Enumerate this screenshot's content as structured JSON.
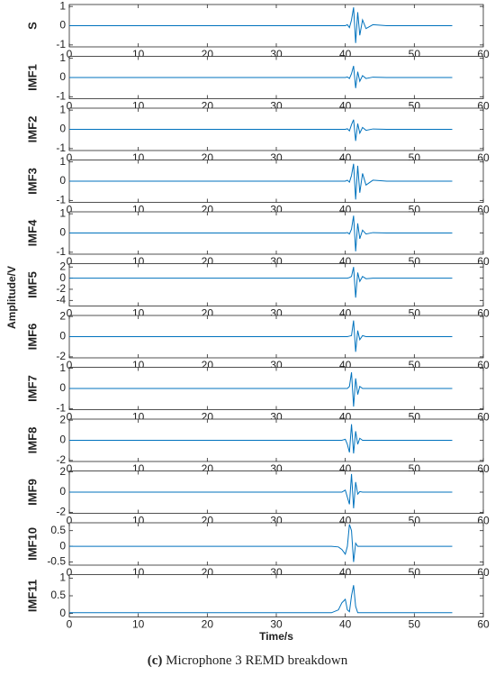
{
  "y_label": "Amplitude/V",
  "x_label": "Time/s",
  "caption": {
    "label": "(c)",
    "text": "Microphone 3 REMD breakdown"
  },
  "chart_data": [
    {
      "type": "line",
      "ylabel": "S",
      "color": "#0072bd",
      "xlim": [
        0,
        60
      ],
      "xticks": [
        0,
        10,
        20,
        30,
        40,
        50,
        60
      ],
      "ylim": [
        -1.1,
        1.1
      ],
      "yticks": [
        -1,
        0,
        1
      ],
      "x": [
        0,
        5,
        10,
        15,
        20,
        25,
        30,
        35,
        38,
        39,
        39.5,
        40,
        40.3,
        40.6,
        40.9,
        41.2,
        41.5,
        41.8,
        42.1,
        42.5,
        43,
        44,
        46,
        50,
        55.5
      ],
      "values": [
        0,
        0,
        0,
        0,
        0,
        0,
        0,
        0,
        0,
        0,
        0,
        0,
        0.05,
        -0.1,
        0.3,
        0.95,
        -0.9,
        0.7,
        -0.5,
        0.3,
        -0.15,
        0.05,
        0,
        0,
        0
      ]
    },
    {
      "type": "line",
      "ylabel": "IMF1",
      "color": "#0072bd",
      "xlim": [
        0,
        60
      ],
      "xticks": [
        0,
        10,
        20,
        30,
        40,
        50,
        60
      ],
      "ylim": [
        -1.1,
        1.1
      ],
      "yticks": [
        -1,
        0,
        1
      ],
      "x": [
        0,
        5,
        10,
        15,
        20,
        25,
        30,
        35,
        38,
        39,
        39.5,
        40,
        40.3,
        40.6,
        40.9,
        41.2,
        41.5,
        41.8,
        42.1,
        42.5,
        43,
        44,
        46,
        50,
        55.5
      ],
      "values": [
        0,
        0,
        0,
        0,
        0,
        0,
        0,
        0,
        0,
        0,
        0,
        0,
        0.03,
        -0.05,
        0.2,
        0.6,
        -0.55,
        0.3,
        -0.2,
        0.1,
        -0.05,
        0.02,
        0,
        0,
        0
      ]
    },
    {
      "type": "line",
      "ylabel": "IMF2",
      "color": "#0072bd",
      "xlim": [
        0,
        60
      ],
      "xticks": [
        0,
        10,
        20,
        30,
        40,
        50,
        60
      ],
      "ylim": [
        -1.1,
        1.1
      ],
      "yticks": [
        -1,
        0,
        1
      ],
      "x": [
        0,
        5,
        10,
        15,
        20,
        25,
        30,
        35,
        38,
        39,
        39.5,
        40,
        40.3,
        40.6,
        40.9,
        41.2,
        41.5,
        41.8,
        42.1,
        42.5,
        43,
        44,
        46,
        50,
        55.5
      ],
      "values": [
        0,
        0,
        0,
        0,
        0,
        0,
        0,
        0,
        0,
        0,
        0,
        0,
        0.03,
        -0.08,
        0.25,
        0.5,
        -0.6,
        0.3,
        -0.2,
        0.1,
        -0.05,
        0.02,
        0,
        0,
        0
      ]
    },
    {
      "type": "line",
      "ylabel": "IMF3",
      "color": "#0072bd",
      "xlim": [
        0,
        60
      ],
      "xticks": [
        0,
        10,
        20,
        30,
        40,
        50,
        60
      ],
      "ylim": [
        -1.1,
        1.1
      ],
      "yticks": [
        -1,
        0,
        1
      ],
      "x": [
        0,
        5,
        10,
        15,
        20,
        25,
        30,
        35,
        38,
        39,
        39.5,
        40,
        40.3,
        40.6,
        40.9,
        41.2,
        41.5,
        41.8,
        42.1,
        42.5,
        43,
        44,
        46,
        50,
        55.5
      ],
      "values": [
        0,
        0,
        0,
        0,
        0,
        0,
        0,
        0,
        0,
        0,
        0,
        0,
        0.05,
        -0.05,
        0.3,
        0.9,
        -0.95,
        0.8,
        -0.6,
        0.4,
        -0.2,
        0.05,
        0,
        0,
        0
      ]
    },
    {
      "type": "line",
      "ylabel": "IMF4",
      "color": "#0072bd",
      "xlim": [
        0,
        60
      ],
      "xticks": [
        0,
        10,
        20,
        30,
        40,
        50,
        60
      ],
      "ylim": [
        -1.1,
        1.1
      ],
      "yticks": [
        -1,
        0,
        1
      ],
      "x": [
        0,
        5,
        10,
        15,
        20,
        25,
        30,
        35,
        38,
        39,
        39.5,
        40,
        40.3,
        40.6,
        40.9,
        41.2,
        41.5,
        41.8,
        42.1,
        42.5,
        43,
        44,
        46,
        50,
        55.5
      ],
      "values": [
        0,
        0,
        0,
        0,
        0,
        0,
        0,
        0,
        0,
        0,
        0,
        0,
        0.02,
        -0.05,
        0.2,
        0.9,
        -0.95,
        0.5,
        -0.3,
        0.15,
        -0.05,
        0.02,
        0,
        0,
        0
      ]
    },
    {
      "type": "line",
      "ylabel": "IMF5",
      "color": "#0072bd",
      "xlim": [
        0,
        60
      ],
      "xticks": [
        0,
        10,
        20,
        30,
        40,
        50,
        60
      ],
      "ylim": [
        -5,
        2.6
      ],
      "yticks": [
        -4,
        -2,
        0,
        2
      ],
      "x": [
        0,
        5,
        10,
        15,
        20,
        25,
        30,
        35,
        38,
        39,
        39.5,
        40,
        40.3,
        40.6,
        40.9,
        41.2,
        41.5,
        41.8,
        42.1,
        42.5,
        43,
        44,
        46,
        50,
        55.5
      ],
      "values": [
        0,
        0,
        0,
        0,
        0,
        0,
        0,
        0,
        0,
        0,
        0,
        0,
        0,
        0.1,
        0.3,
        2,
        -3.5,
        1,
        -0.6,
        0.3,
        -0.1,
        0,
        0,
        0,
        0
      ]
    },
    {
      "type": "line",
      "ylabel": "IMF6",
      "color": "#0072bd",
      "xlim": [
        0,
        60
      ],
      "xticks": [
        0,
        10,
        20,
        30,
        40,
        50,
        60
      ],
      "ylim": [
        -2.1,
        2.1
      ],
      "yticks": [
        -2,
        0,
        2
      ],
      "x": [
        0,
        5,
        10,
        15,
        20,
        25,
        30,
        35,
        38,
        39,
        39.5,
        40,
        40.3,
        40.6,
        40.9,
        41.2,
        41.5,
        41.8,
        42.1,
        42.5,
        43,
        44,
        46,
        50,
        55.5
      ],
      "values": [
        0,
        0,
        0,
        0,
        0,
        0,
        0,
        0,
        0,
        0,
        0,
        0,
        0,
        0.05,
        0.1,
        1.6,
        -1.5,
        0.6,
        -0.3,
        0.1,
        0,
        0,
        0,
        0,
        0
      ]
    },
    {
      "type": "line",
      "ylabel": "IMF7",
      "color": "#0072bd",
      "xlim": [
        0,
        60
      ],
      "xticks": [
        0,
        10,
        20,
        30,
        40,
        50,
        60
      ],
      "ylim": [
        -1.05,
        1.05
      ],
      "yticks": [
        -1,
        0,
        1
      ],
      "x": [
        0,
        5,
        10,
        15,
        20,
        25,
        30,
        35,
        38,
        39,
        39.5,
        40,
        40.3,
        40.6,
        40.9,
        41.2,
        41.5,
        41.8,
        42.1,
        42.5,
        43,
        44,
        46,
        50,
        55.5
      ],
      "values": [
        0,
        0,
        0,
        0,
        0,
        0,
        0,
        0,
        0,
        0,
        0,
        0,
        0,
        0.1,
        0.8,
        -0.9,
        0.5,
        -0.3,
        0.1,
        0,
        0,
        0,
        0,
        0,
        0
      ]
    },
    {
      "type": "line",
      "ylabel": "IMF8",
      "color": "#0072bd",
      "xlim": [
        0,
        60
      ],
      "xticks": [
        0,
        10,
        20,
        30,
        40,
        50,
        60
      ],
      "ylim": [
        -2.1,
        2.1
      ],
      "yticks": [
        -2,
        0,
        2
      ],
      "x": [
        0,
        5,
        10,
        15,
        20,
        25,
        30,
        35,
        38,
        39,
        39.5,
        40,
        40.3,
        40.6,
        40.9,
        41.2,
        41.5,
        41.8,
        42.1,
        42.5,
        43,
        44,
        46,
        50,
        55.5
      ],
      "values": [
        0,
        0,
        0,
        0,
        0,
        0,
        0,
        0,
        0,
        0,
        0,
        0.1,
        -0.4,
        -1.2,
        1.6,
        -1.3,
        0.9,
        -0.4,
        0.2,
        0,
        0,
        0,
        0,
        0,
        0
      ]
    },
    {
      "type": "line",
      "ylabel": "IMF9",
      "color": "#0072bd",
      "xlim": [
        0,
        60
      ],
      "xticks": [
        0,
        10,
        20,
        30,
        40,
        50,
        60
      ],
      "ylim": [
        -2.1,
        2.1
      ],
      "yticks": [
        -2,
        0,
        2
      ],
      "x": [
        0,
        5,
        10,
        15,
        20,
        25,
        30,
        35,
        38,
        39,
        39.5,
        40,
        40.3,
        40.6,
        40.9,
        41.2,
        41.5,
        41.8,
        42.1,
        42.5,
        43,
        44,
        46,
        50,
        55.5
      ],
      "values": [
        0,
        0,
        0,
        0,
        0,
        0,
        0,
        0,
        0,
        0,
        0,
        0.2,
        -0.5,
        -1.2,
        1.8,
        -1.6,
        1,
        -0.2,
        0.05,
        0,
        0,
        0,
        0,
        0,
        0
      ]
    },
    {
      "type": "line",
      "ylabel": "IMF10",
      "color": "#0072bd",
      "xlim": [
        0,
        60
      ],
      "xticks": [
        0,
        10,
        20,
        30,
        40,
        50,
        60
      ],
      "ylim": [
        -0.6,
        0.75
      ],
      "yticks": [
        -0.5,
        0,
        0.5
      ],
      "x": [
        0,
        5,
        10,
        15,
        20,
        25,
        30,
        35,
        38,
        39,
        39.5,
        40,
        40.3,
        40.6,
        40.9,
        41.2,
        41.5,
        41.8,
        42.1,
        42.5,
        43,
        44,
        46,
        50,
        55.5
      ],
      "values": [
        0,
        0,
        0,
        0,
        0,
        0,
        0,
        0,
        0,
        -0.02,
        -0.1,
        -0.25,
        0,
        0.7,
        0.5,
        -0.5,
        0.1,
        0,
        0,
        0,
        0,
        0,
        0,
        0,
        0
      ]
    },
    {
      "type": "line",
      "ylabel": "IMF11",
      "color": "#0072bd",
      "xlim": [
        0,
        60
      ],
      "xticks": [
        0,
        10,
        20,
        30,
        40,
        50,
        60
      ],
      "ylim": [
        -0.1,
        1.1
      ],
      "yticks": [
        0,
        0.5,
        1
      ],
      "x": [
        0,
        5,
        10,
        15,
        20,
        25,
        30,
        35,
        38,
        39,
        39.5,
        40,
        40.3,
        40.6,
        40.9,
        41.2,
        41.5,
        41.8,
        42.1,
        42.5,
        43,
        44,
        46,
        50,
        55.5
      ],
      "values": [
        0.02,
        0.02,
        0.02,
        0.02,
        0.02,
        0.02,
        0.02,
        0.02,
        0.02,
        0.1,
        0.3,
        0.4,
        0.1,
        0.05,
        0.5,
        0.8,
        0.2,
        0.02,
        0.02,
        0.02,
        0.02,
        0.02,
        0.02,
        0.02,
        0.02
      ]
    }
  ]
}
